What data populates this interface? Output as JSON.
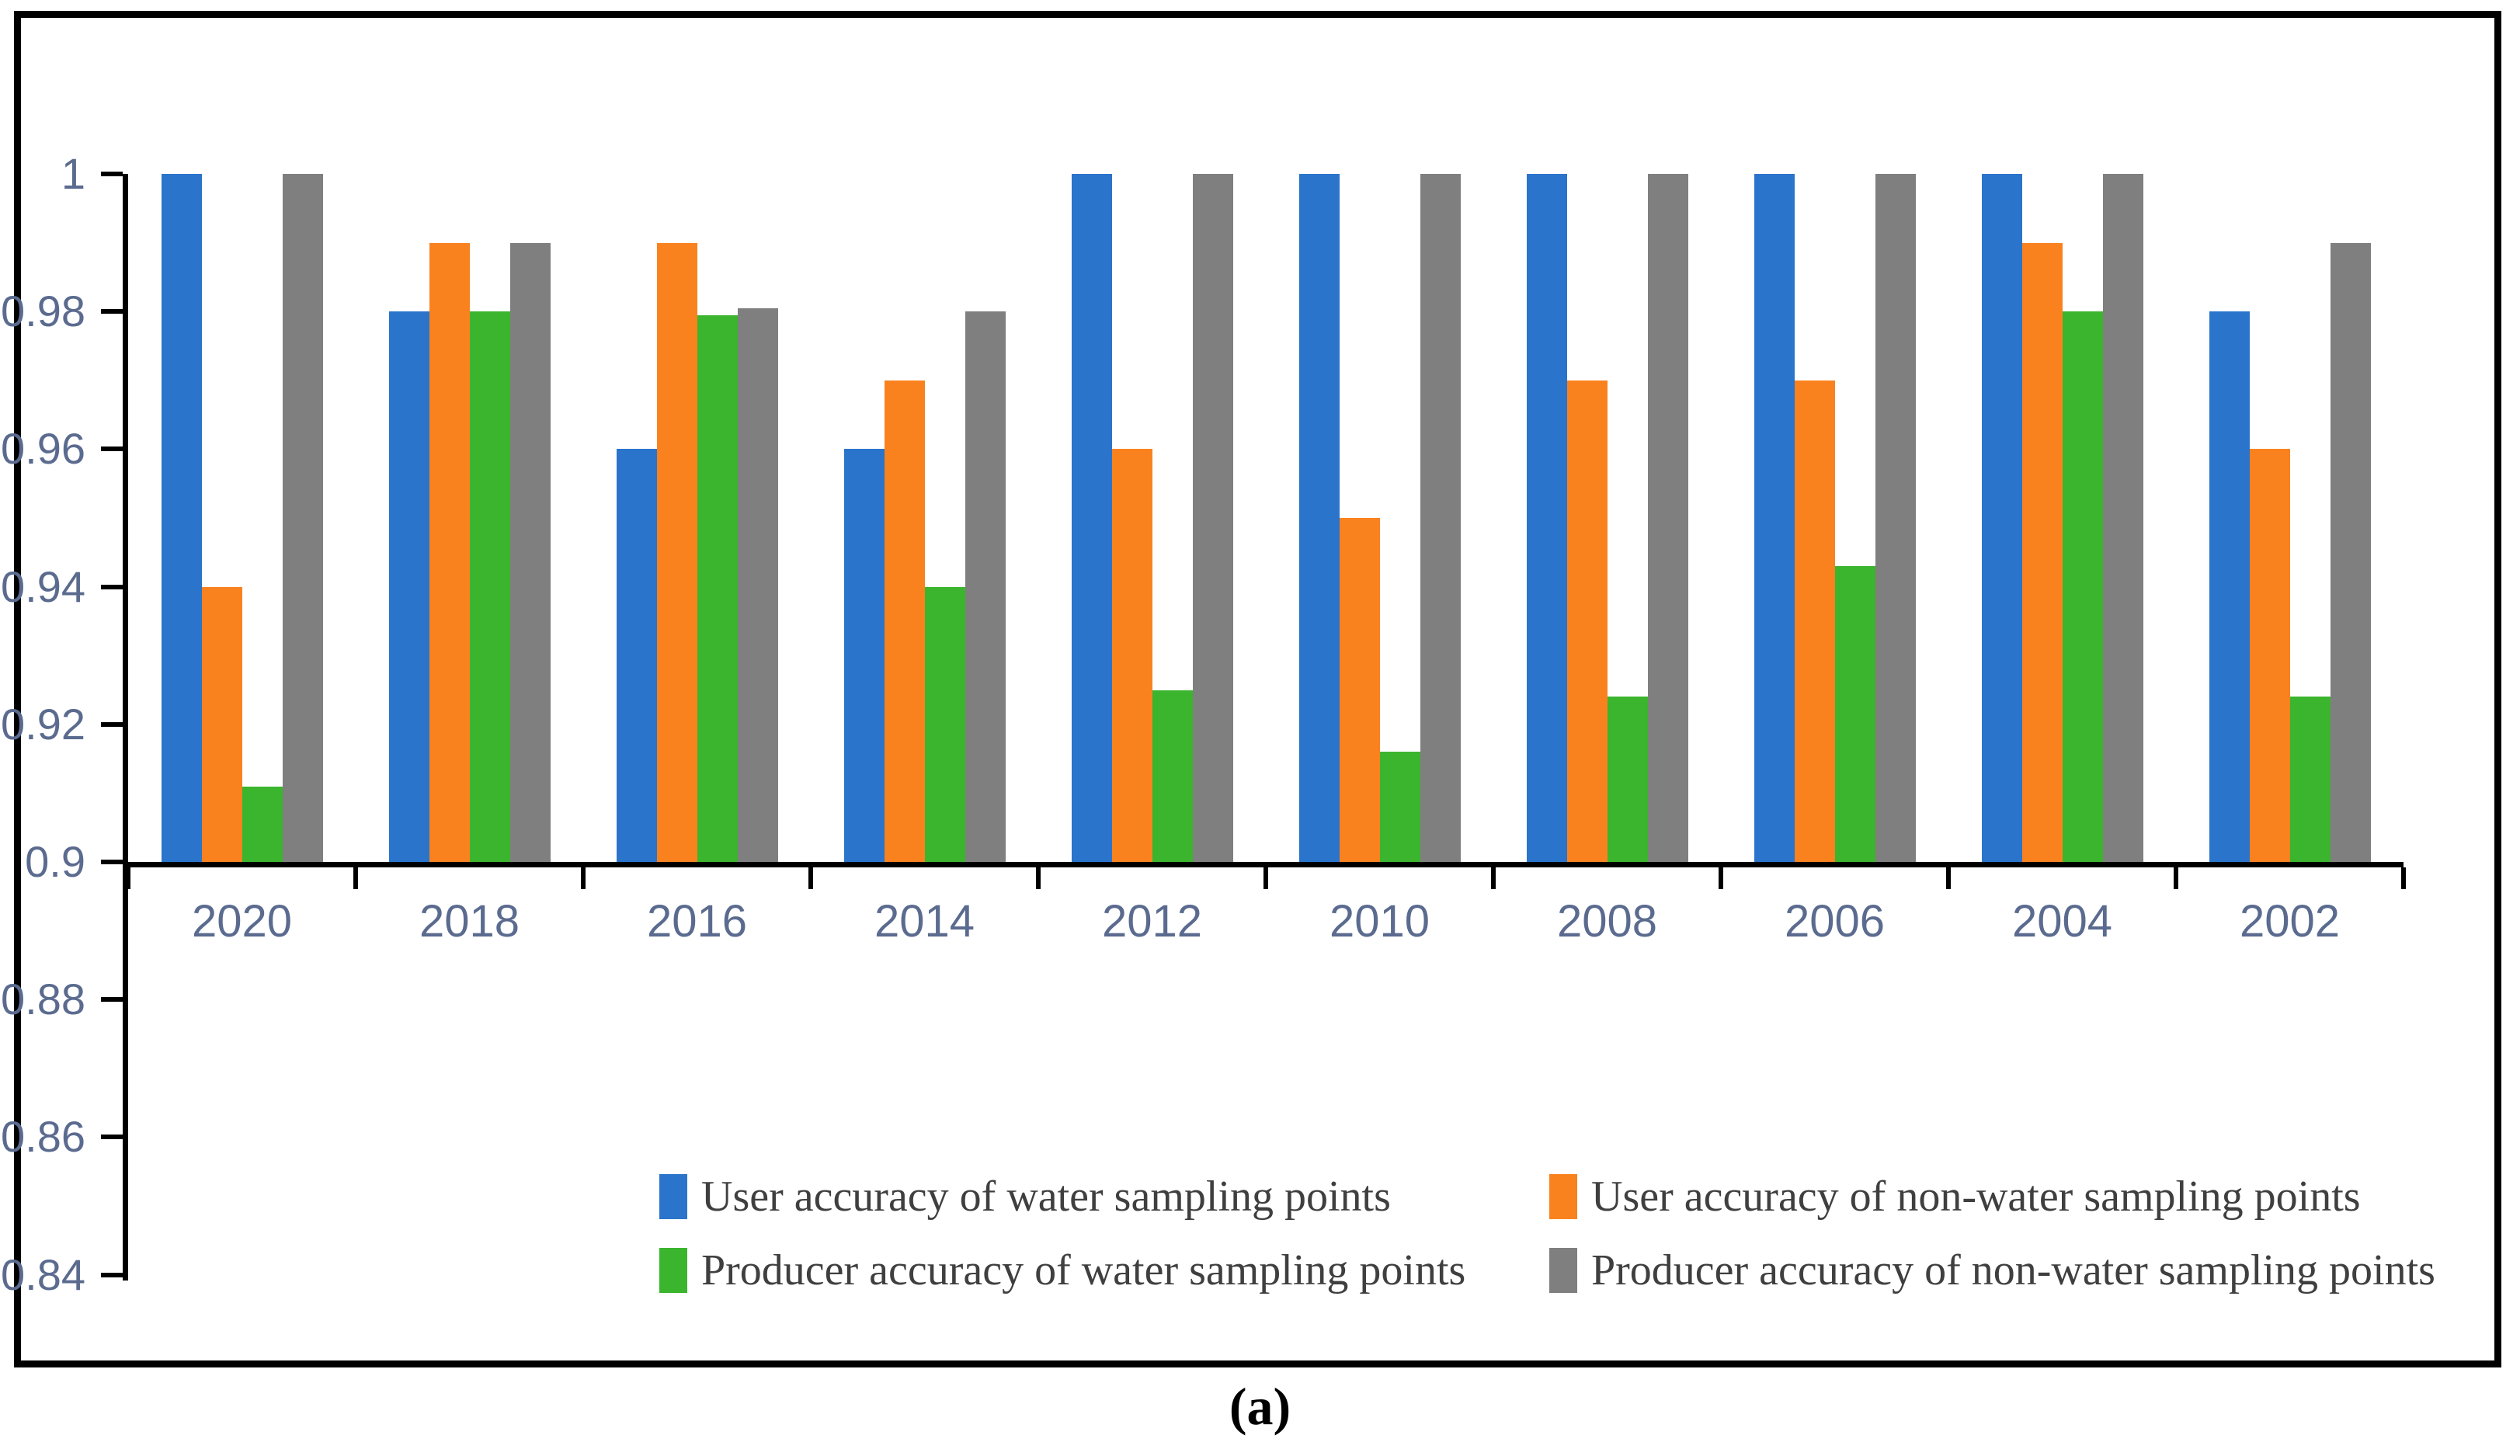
{
  "figure": {
    "caption": "(a)"
  },
  "chart_data": {
    "type": "bar",
    "title": "",
    "xlabel": "",
    "ylabel": "",
    "categories": [
      "2020",
      "2018",
      "2016",
      "2014",
      "2012",
      "2010",
      "2008",
      "2006",
      "2004",
      "2002"
    ],
    "series": [
      {
        "name": "User accuracy of water sampling points",
        "color": "#2A74CC",
        "values": [
          1.0,
          0.98,
          0.96,
          0.96,
          1.0,
          1.0,
          1.0,
          1.0,
          1.0,
          0.98
        ]
      },
      {
        "name": "User accuracy of non-water sampling points",
        "color": "#F9821F",
        "values": [
          0.94,
          0.99,
          0.99,
          0.97,
          0.96,
          0.95,
          0.97,
          0.97,
          0.99,
          0.96
        ]
      },
      {
        "name": "Producer accuracy of water sampling points",
        "color": "#3BB42E",
        "values": [
          0.911,
          0.98,
          0.9795,
          0.94,
          0.925,
          0.916,
          0.924,
          0.943,
          0.98,
          0.924
        ]
      },
      {
        "name": "Producer accuracy of non-water sampling points",
        "color": "#7F7F7F",
        "values": [
          1.0,
          0.99,
          0.9805,
          0.98,
          1.0,
          1.0,
          1.0,
          1.0,
          1.0,
          0.99
        ]
      }
    ],
    "ylim": [
      0.84,
      1.0
    ],
    "ytick_labels": [
      "1",
      "0.98",
      "0.96",
      "0.94",
      "0.92",
      "0.9",
      "0.88",
      "0.86",
      "0.84"
    ],
    "ytick_values": [
      1.0,
      0.98,
      0.96,
      0.94,
      0.92,
      0.9,
      0.88,
      0.86,
      0.84
    ],
    "x_axis_cross": 0.9,
    "grid": false,
    "legend_position": "bottom-inside",
    "axis_color": "#000000",
    "tick_label_color": "#5B6B8F",
    "legend_text_color": "#3F3F3F"
  }
}
